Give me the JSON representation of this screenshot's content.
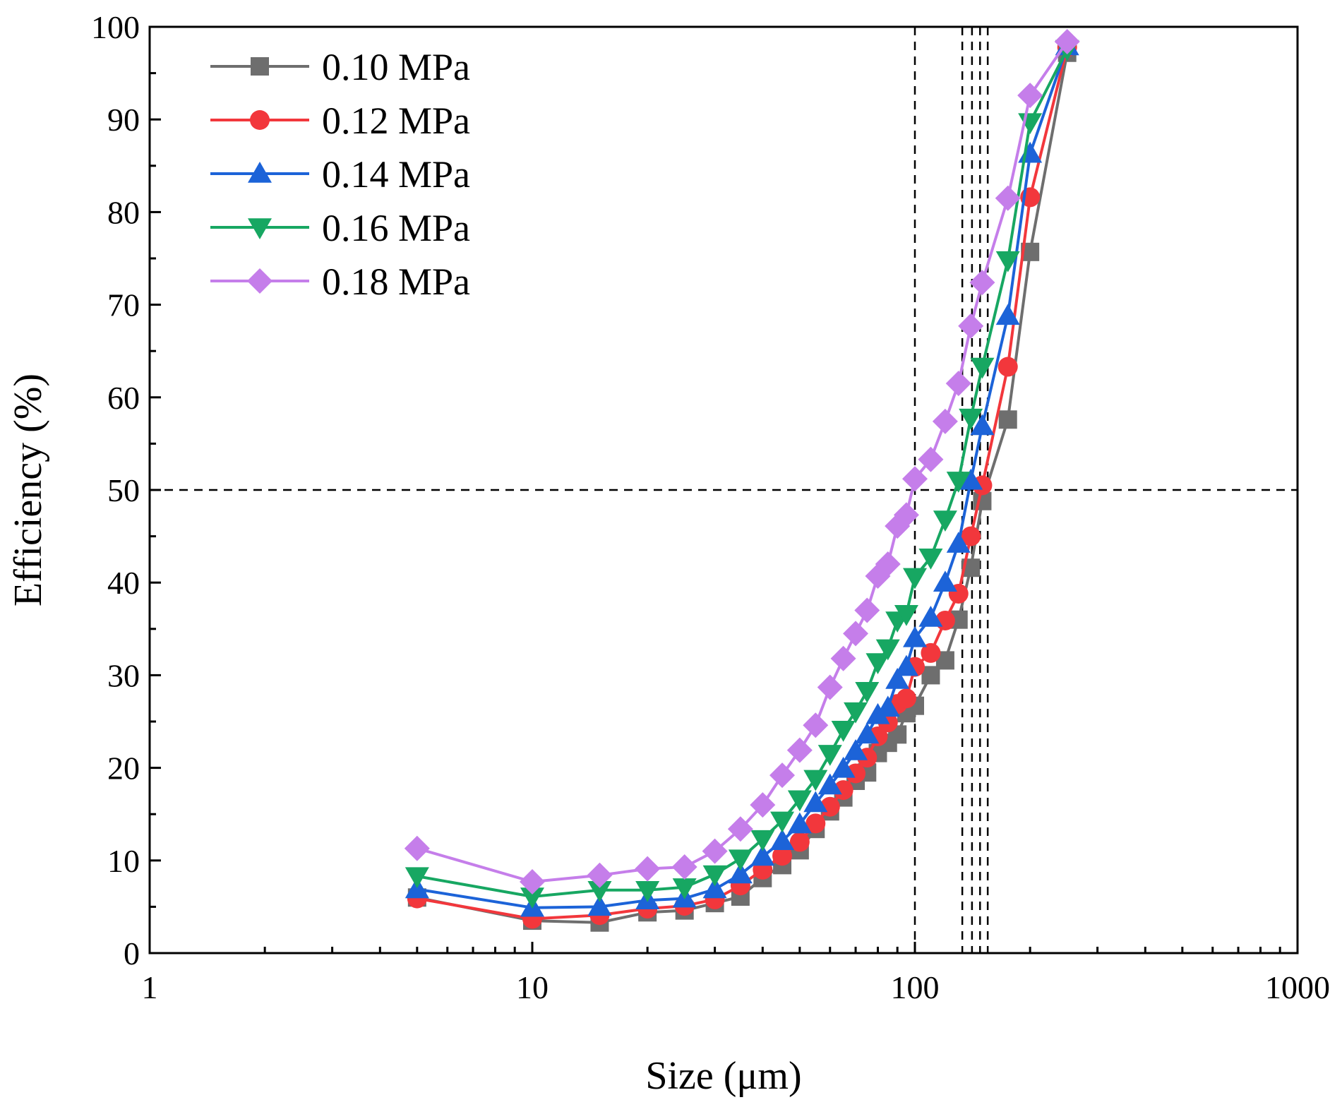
{
  "chart_data": {
    "type": "line",
    "xscale": "log",
    "xlabel": "Size (μm)",
    "ylabel": "Efficiency (%)",
    "xlim": [
      1,
      1000
    ],
    "ylim": [
      0,
      100
    ],
    "xticks": [
      1,
      10,
      100,
      1000
    ],
    "xtick_labels": [
      "1",
      "10",
      "100",
      "1000"
    ],
    "yticks": [
      0,
      10,
      20,
      30,
      40,
      50,
      60,
      70,
      80,
      90,
      100
    ],
    "ytick_labels": [
      "0",
      "10",
      "20",
      "30",
      "40",
      "50",
      "60",
      "70",
      "80",
      "90",
      "100"
    ],
    "legend_position": "top-left",
    "reference_lines": {
      "horizontal": [
        50
      ],
      "vertical": [
        100,
        133,
        141,
        148,
        155
      ]
    },
    "x": [
      5,
      10,
      15,
      20,
      25,
      30,
      35,
      40,
      45,
      50,
      55,
      60,
      65,
      70,
      75,
      80,
      85,
      90,
      95,
      100,
      110,
      120,
      130,
      140,
      150,
      175,
      200,
      250
    ],
    "series": [
      {
        "name": "0.10 MPa",
        "color": "#6e6e6e",
        "marker": "square",
        "values": [
          6.0,
          3.5,
          3.3,
          4.4,
          4.6,
          5.4,
          6.1,
          8.1,
          9.5,
          11.1,
          13.4,
          15.3,
          16.8,
          18.6,
          19.5,
          21.6,
          22.7,
          23.6,
          25.9,
          26.7,
          30.0,
          31.6,
          36.0,
          41.6,
          48.8,
          57.6,
          75.7,
          97.2
        ]
      },
      {
        "name": "0.12 MPa",
        "color": "#f2373c",
        "marker": "circle",
        "values": [
          5.9,
          3.7,
          4.1,
          4.8,
          5.1,
          5.8,
          7.3,
          9.0,
          10.5,
          12.0,
          14.0,
          15.8,
          17.6,
          19.4,
          21.1,
          23.4,
          24.9,
          26.9,
          27.5,
          30.9,
          32.4,
          35.9,
          38.8,
          45.0,
          50.5,
          63.3,
          81.6,
          97.8
        ]
      },
      {
        "name": "0.14 MPa",
        "color": "#1c63d8",
        "marker": "triangle-up",
        "values": [
          6.9,
          4.9,
          5.0,
          5.7,
          5.9,
          6.9,
          8.5,
          10.4,
          12.1,
          13.9,
          16.2,
          18.1,
          19.9,
          21.8,
          23.6,
          25.7,
          26.5,
          29.5,
          30.9,
          34.0,
          36.2,
          40.0,
          44.2,
          51.0,
          56.9,
          68.8,
          86.3,
          97.9
        ]
      },
      {
        "name": "0.16 MPa",
        "color": "#17a762",
        "marker": "triangle-down",
        "values": [
          8.3,
          6.1,
          6.8,
          6.8,
          7.1,
          8.5,
          10.2,
          12.3,
          14.3,
          16.6,
          18.8,
          21.5,
          24.1,
          26.1,
          28.3,
          31.4,
          32.9,
          35.9,
          36.6,
          40.6,
          42.7,
          46.8,
          51.0,
          57.8,
          63.3,
          74.8,
          89.7,
          97.6
        ]
      },
      {
        "name": "0.18 MPa",
        "color": "#c57eea",
        "marker": "diamond",
        "values": [
          11.3,
          7.7,
          8.4,
          9.1,
          9.3,
          11.0,
          13.4,
          16.0,
          19.2,
          21.9,
          24.6,
          28.7,
          31.8,
          34.5,
          37.0,
          40.7,
          42.0,
          46.1,
          47.3,
          51.2,
          53.3,
          57.4,
          61.5,
          67.7,
          72.4,
          81.5,
          92.6,
          98.4
        ]
      }
    ]
  }
}
